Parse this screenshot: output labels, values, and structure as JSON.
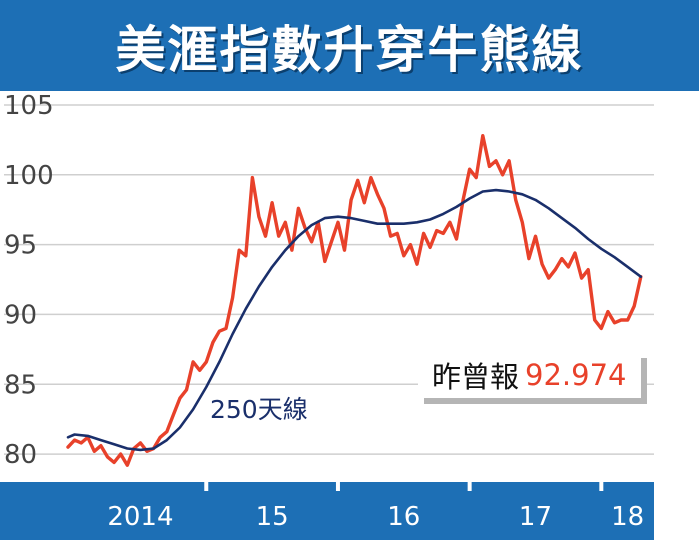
{
  "title": "美滙指數升穿牛熊線",
  "callout": {
    "label": "昨曾報",
    "value": "92.974"
  },
  "colors": {
    "title_bg": "#1d6fb5",
    "axis_bar": "#1d6fb5",
    "price_line": "#e8412a",
    "ma_line": "#1a2f6b",
    "grid": "#cfcfcf"
  },
  "chart_data": {
    "type": "line",
    "title": "美滙指數升穿牛熊線",
    "xlabel": "",
    "ylabel": "",
    "ylim": [
      78,
      106
    ],
    "yticks": [
      80,
      85,
      90,
      95,
      100,
      105
    ],
    "xlim": [
      2013.95,
      2018.4
    ],
    "xticks": [
      {
        "label": "2014",
        "value": 2014.5
      },
      {
        "label": "15",
        "value": 2015.5
      },
      {
        "label": "16",
        "value": 2016.5
      },
      {
        "label": "17",
        "value": 2017.5
      },
      {
        "label": "18",
        "value": 2018.2
      }
    ],
    "year_dividers": [
      2015.0,
      2016.0,
      2017.0,
      2018.0
    ],
    "grid": "horizontal",
    "annotations": [
      {
        "text": "250天線",
        "x": 2015.05,
        "y": 82.2
      }
    ],
    "series": [
      {
        "x": [
          2013.95,
          2014.0,
          2014.05,
          2014.1,
          2014.15,
          2014.2,
          2014.25,
          2014.3,
          2014.35,
          2014.4,
          2014.45,
          2014.5,
          2014.55,
          2014.6,
          2014.65,
          2014.7,
          2014.75,
          2014.8,
          2014.85,
          2014.9,
          2014.95,
          2015.0,
          2015.05,
          2015.1,
          2015.15,
          2015.2,
          2015.25,
          2015.3,
          2015.35,
          2015.4,
          2015.45,
          2015.5,
          2015.55,
          2015.6,
          2015.65,
          2015.7,
          2015.75,
          2015.8,
          2015.85,
          2015.9,
          2015.95,
          2016.0,
          2016.05,
          2016.1,
          2016.15,
          2016.2,
          2016.25,
          2016.3,
          2016.35,
          2016.4,
          2016.45,
          2016.5,
          2016.55,
          2016.6,
          2016.65,
          2016.7,
          2016.75,
          2016.8,
          2016.85,
          2016.9,
          2016.95,
          2017.0,
          2017.05,
          2017.1,
          2017.15,
          2017.2,
          2017.25,
          2017.3,
          2017.35,
          2017.4,
          2017.45,
          2017.5,
          2017.55,
          2017.6,
          2017.65,
          2017.7,
          2017.75,
          2017.8,
          2017.85,
          2017.9,
          2017.95,
          2018.0,
          2018.05,
          2018.1,
          2018.15,
          2018.2,
          2018.25,
          2018.3
        ],
        "values": [
          80.5,
          81.0,
          80.8,
          81.2,
          80.2,
          80.6,
          79.8,
          79.4,
          80.0,
          79.2,
          80.4,
          80.8,
          80.2,
          80.4,
          81.2,
          81.6,
          82.8,
          84.0,
          84.6,
          86.6,
          86.0,
          86.6,
          88.0,
          88.8,
          89.0,
          91.2,
          94.6,
          94.2,
          99.8,
          97.0,
          95.6,
          98.0,
          95.6,
          96.6,
          94.6,
          97.6,
          96.2,
          95.2,
          96.6,
          93.8,
          95.2,
          96.6,
          94.6,
          98.2,
          99.6,
          98.0,
          99.8,
          98.6,
          97.6,
          95.6,
          95.8,
          94.2,
          95.0,
          93.6,
          95.8,
          94.8,
          96.0,
          95.8,
          96.6,
          95.4,
          98.2,
          100.4,
          99.8,
          102.8,
          100.6,
          101.0,
          100.0,
          101.0,
          98.2,
          96.6,
          94.0,
          95.6,
          93.6,
          92.6,
          93.2,
          94.0,
          93.4,
          94.4,
          92.6,
          93.2,
          89.6,
          89.0,
          90.2,
          89.4,
          89.6,
          89.6,
          90.6,
          92.7
        ]
      },
      {
        "x": [
          2013.95,
          2014.0,
          2014.1,
          2014.2,
          2014.3,
          2014.4,
          2014.5,
          2014.6,
          2014.7,
          2014.8,
          2014.9,
          2015.0,
          2015.1,
          2015.2,
          2015.3,
          2015.4,
          2015.5,
          2015.6,
          2015.7,
          2015.8,
          2015.9,
          2016.0,
          2016.1,
          2016.2,
          2016.3,
          2016.4,
          2016.5,
          2016.6,
          2016.7,
          2016.8,
          2016.9,
          2017.0,
          2017.1,
          2017.2,
          2017.3,
          2017.4,
          2017.5,
          2017.6,
          2017.7,
          2017.8,
          2017.9,
          2018.0,
          2018.1,
          2018.2,
          2018.3
        ],
        "values": [
          81.2,
          81.4,
          81.3,
          81.0,
          80.7,
          80.4,
          80.3,
          80.4,
          81.0,
          81.9,
          83.2,
          84.8,
          86.6,
          88.6,
          90.4,
          92.0,
          93.4,
          94.6,
          95.6,
          96.4,
          96.9,
          97.0,
          96.9,
          96.7,
          96.5,
          96.5,
          96.5,
          96.6,
          96.8,
          97.2,
          97.7,
          98.3,
          98.8,
          98.9,
          98.8,
          98.6,
          98.2,
          97.6,
          96.9,
          96.2,
          95.4,
          94.7,
          94.1,
          93.4,
          92.7
        ]
      }
    ]
  }
}
